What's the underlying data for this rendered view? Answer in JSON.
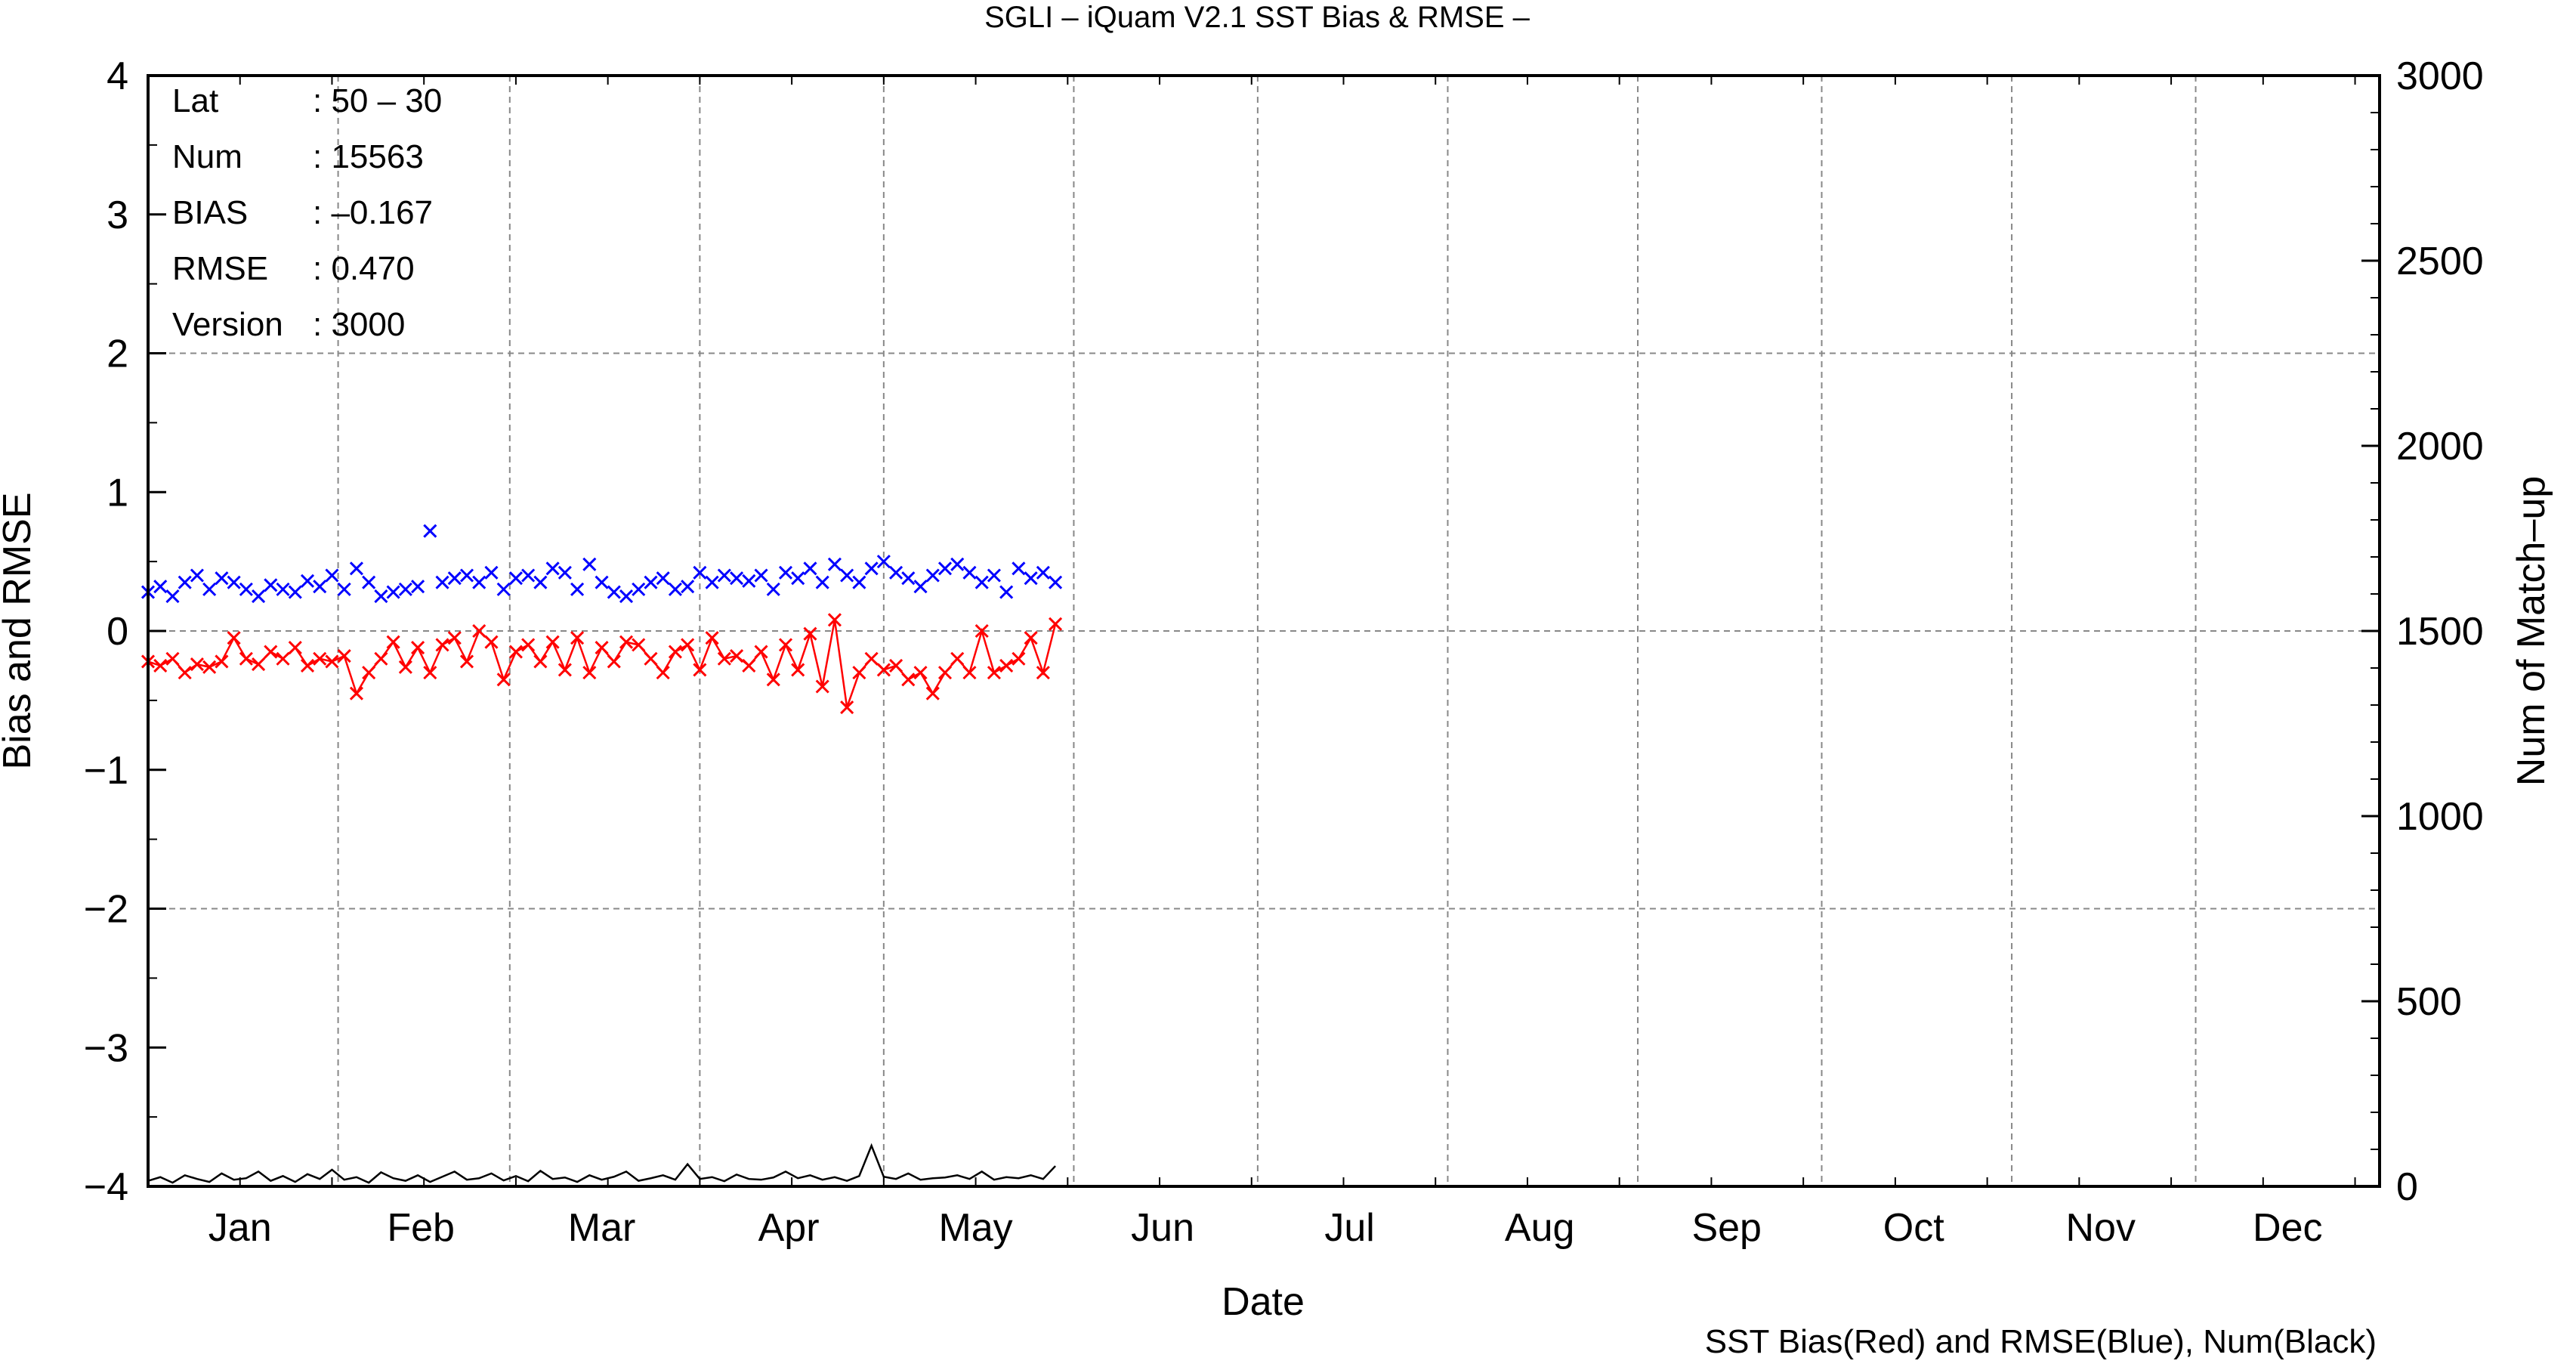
{
  "chart_data": {
    "type": "line",
    "title": "SGLI – iQuam V2.1 SST Bias & RMSE  –",
    "xlabel": "Date",
    "ylabel": "Bias and RMSE",
    "y2label": "Num of Match–up",
    "footnote": "SST Bias(Red) and RMSE(Blue), Num(Black)",
    "x_unit": "day of year",
    "xlim": [
      1,
      365
    ],
    "ylim": [
      -4,
      4
    ],
    "y2lim": [
      0,
      3000
    ],
    "grid": true,
    "months": [
      "Jan",
      "Feb",
      "Mar",
      "Apr",
      "May",
      "Jun",
      "Jul",
      "Aug",
      "Sep",
      "Oct",
      "Nov",
      "Dec"
    ],
    "yticks": [
      "−4",
      "−3",
      "−2",
      "−1",
      "0",
      "1",
      "2",
      "3",
      "4"
    ],
    "y2ticks": [
      "0",
      "500",
      "1000",
      "1500",
      "2000",
      "2500",
      "3000"
    ],
    "stats": [
      {
        "label": "Lat",
        "value": ": 50 – 30"
      },
      {
        "label": "Num",
        "value": ": 15563"
      },
      {
        "label": "BIAS",
        "value": ": –0.167"
      },
      {
        "label": "RMSE",
        "value": ": 0.470"
      },
      {
        "label": "Version",
        "value": ": 3000"
      }
    ],
    "colors": {
      "bias": "#ff0000",
      "rmse": "#0000ff",
      "num": "#000000",
      "grid": "#888888"
    },
    "series": [
      {
        "key": "bias",
        "line": true,
        "marker": "x",
        "x": [
          1,
          3,
          5,
          7,
          9,
          11,
          13,
          15,
          17,
          19,
          21,
          23,
          25,
          27,
          29,
          31,
          33,
          35,
          37,
          39,
          41,
          43,
          45,
          47,
          49,
          51,
          53,
          55,
          57,
          59,
          61,
          63,
          65,
          67,
          69,
          71,
          73,
          75,
          77,
          79,
          81,
          83,
          85,
          87,
          89,
          91,
          93,
          95,
          97,
          99,
          101,
          103,
          105,
          107,
          109,
          111,
          113,
          115,
          117,
          119,
          121,
          123,
          125,
          127,
          129,
          131,
          133,
          135,
          137,
          139,
          141,
          143,
          145,
          147,
          149
        ],
        "y": [
          -0.22,
          -0.25,
          -0.2,
          -0.3,
          -0.24,
          -0.26,
          -0.22,
          -0.05,
          -0.2,
          -0.24,
          -0.15,
          -0.2,
          -0.12,
          -0.25,
          -0.2,
          -0.22,
          -0.18,
          -0.45,
          -0.3,
          -0.2,
          -0.08,
          -0.26,
          -0.12,
          -0.3,
          -0.1,
          -0.05,
          -0.22,
          0.0,
          -0.08,
          -0.35,
          -0.15,
          -0.1,
          -0.22,
          -0.08,
          -0.28,
          -0.05,
          -0.3,
          -0.12,
          -0.22,
          -0.08,
          -0.1,
          -0.2,
          -0.3,
          -0.15,
          -0.1,
          -0.28,
          -0.05,
          -0.2,
          -0.18,
          -0.25,
          -0.15,
          -0.35,
          -0.1,
          -0.28,
          -0.02,
          -0.4,
          0.08,
          -0.55,
          -0.3,
          -0.2,
          -0.28,
          -0.25,
          -0.35,
          -0.3,
          -0.45,
          -0.3,
          -0.2,
          -0.3,
          0.0,
          -0.3,
          -0.25,
          -0.2,
          -0.05,
          -0.3,
          0.05
        ]
      },
      {
        "key": "rmse",
        "line": false,
        "marker": "x",
        "x": [
          1,
          3,
          5,
          7,
          9,
          11,
          13,
          15,
          17,
          19,
          21,
          23,
          25,
          27,
          29,
          31,
          33,
          35,
          37,
          39,
          41,
          43,
          45,
          47,
          49,
          51,
          53,
          55,
          57,
          59,
          61,
          63,
          65,
          67,
          69,
          71,
          73,
          75,
          77,
          79,
          81,
          83,
          85,
          87,
          89,
          91,
          93,
          95,
          97,
          99,
          101,
          103,
          105,
          107,
          109,
          111,
          113,
          115,
          117,
          119,
          121,
          123,
          125,
          127,
          129,
          131,
          133,
          135,
          137,
          139,
          141,
          143,
          145,
          147,
          149
        ],
        "y": [
          0.28,
          0.32,
          0.25,
          0.35,
          0.4,
          0.3,
          0.38,
          0.35,
          0.3,
          0.25,
          0.33,
          0.3,
          0.28,
          0.36,
          0.32,
          0.4,
          0.3,
          0.45,
          0.35,
          0.25,
          0.28,
          0.3,
          0.32,
          0.72,
          0.35,
          0.38,
          0.4,
          0.35,
          0.42,
          0.3,
          0.38,
          0.4,
          0.35,
          0.45,
          0.42,
          0.3,
          0.48,
          0.35,
          0.28,
          0.25,
          0.3,
          0.35,
          0.38,
          0.3,
          0.32,
          0.42,
          0.35,
          0.4,
          0.38,
          0.36,
          0.4,
          0.3,
          0.42,
          0.38,
          0.45,
          0.35,
          0.48,
          0.4,
          0.35,
          0.45,
          0.5,
          0.42,
          0.38,
          0.32,
          0.4,
          0.45,
          0.48,
          0.42,
          0.35,
          0.4,
          0.28,
          0.45,
          0.38,
          0.42,
          0.35
        ]
      },
      {
        "key": "num",
        "line": true,
        "marker": "none",
        "axis": "y2",
        "x": [
          1,
          3,
          5,
          7,
          9,
          11,
          13,
          15,
          17,
          19,
          21,
          23,
          25,
          27,
          29,
          31,
          33,
          35,
          37,
          39,
          41,
          43,
          45,
          47,
          49,
          51,
          53,
          55,
          57,
          59,
          61,
          63,
          65,
          67,
          69,
          71,
          73,
          75,
          77,
          79,
          81,
          83,
          85,
          87,
          89,
          91,
          93,
          95,
          97,
          99,
          101,
          103,
          105,
          107,
          109,
          111,
          113,
          115,
          117,
          119,
          121,
          123,
          125,
          127,
          129,
          131,
          133,
          135,
          137,
          139,
          141,
          143,
          145,
          147,
          149
        ],
        "y": [
          15,
          25,
          10,
          30,
          20,
          12,
          35,
          18,
          22,
          40,
          15,
          28,
          12,
          33,
          20,
          45,
          18,
          25,
          10,
          38,
          22,
          15,
          30,
          12,
          26,
          40,
          18,
          22,
          35,
          16,
          28,
          14,
          42,
          20,
          24,
          12,
          30,
          18,
          26,
          40,
          15,
          22,
          30,
          18,
          60,
          20,
          25,
          14,
          32,
          20,
          18,
          24,
          40,
          22,
          30,
          18,
          25,
          15,
          28,
          110,
          26,
          20,
          35,
          18,
          22,
          24,
          30,
          20,
          40,
          18,
          25,
          22,
          30,
          20,
          55
        ]
      }
    ]
  }
}
